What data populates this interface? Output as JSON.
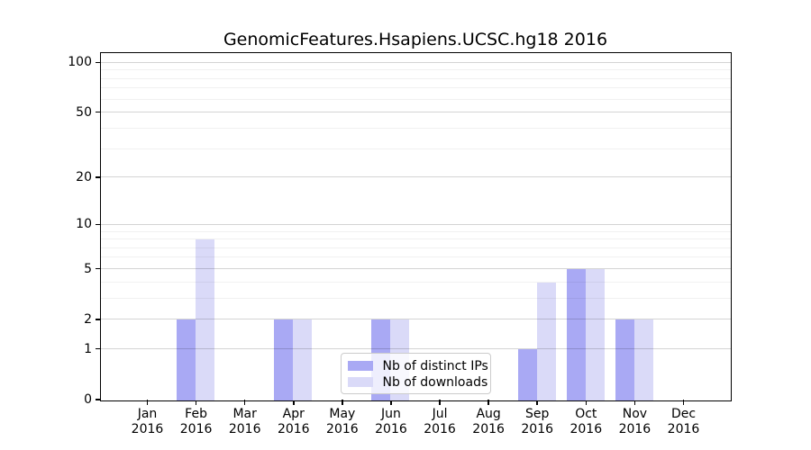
{
  "chart_data": {
    "type": "bar",
    "title": "GenomicFeatures.Hsapiens.UCSC.hg18 2016",
    "year": "2016",
    "categories": [
      "Jan",
      "Feb",
      "Mar",
      "Apr",
      "May",
      "Jun",
      "Jul",
      "Aug",
      "Sep",
      "Oct",
      "Nov",
      "Dec"
    ],
    "series": [
      {
        "name": "Nb of distinct IPs",
        "color": "#a9a9f4",
        "values": [
          0,
          2,
          0,
          2,
          0,
          2,
          0,
          0,
          1,
          5,
          2,
          0
        ]
      },
      {
        "name": "Nb of downloads",
        "color": "#dadaf8",
        "values": [
          0,
          8,
          0,
          2,
          0,
          2,
          0,
          0,
          4,
          5,
          2,
          0
        ]
      }
    ],
    "xlabel": "",
    "ylabel": "",
    "yscale": "log1p",
    "yticks": [
      0,
      1,
      2,
      5,
      10,
      20,
      50,
      100
    ],
    "yticks_minor": [
      3,
      4,
      6,
      7,
      8,
      9,
      30,
      40,
      60,
      70,
      80,
      90
    ],
    "ylim": [
      0,
      113.6
    ],
    "grid": true,
    "legend_position": "inside-bottom-center"
  },
  "colors": {
    "distinct_ips_bar": "#a9a9f4",
    "downloads_bar": "#dadaf8",
    "axis": "#000000",
    "background": "#ffffff"
  }
}
